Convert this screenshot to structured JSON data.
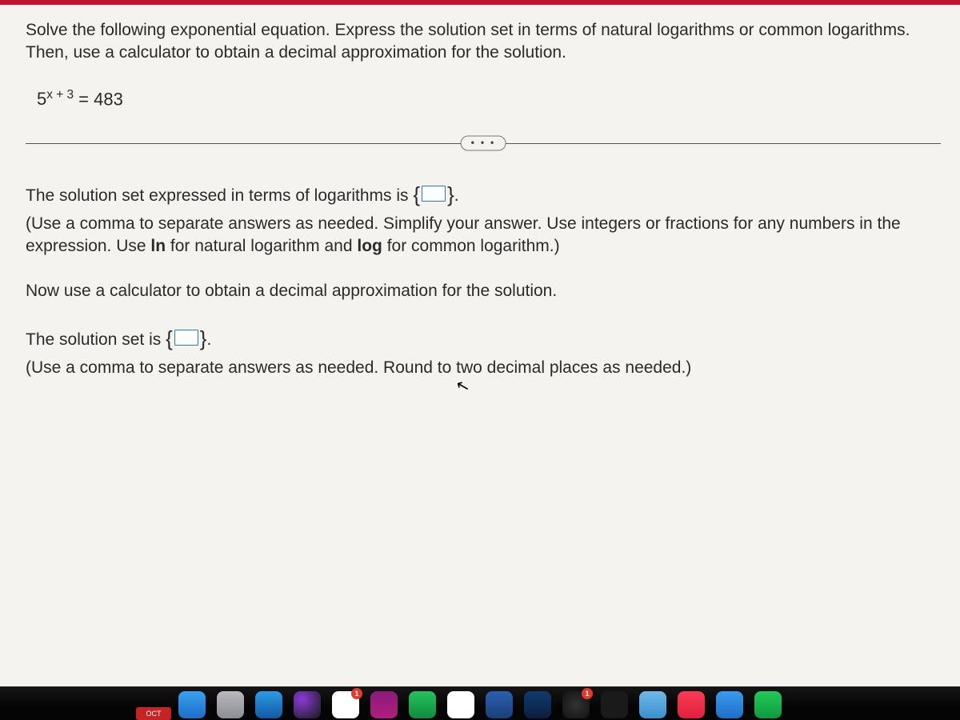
{
  "problem": {
    "instructions": "Solve the following exponential equation. Express the solution set in terms of natural logarithms or common logarithms. Then, use a calculator to obtain a decimal approximation for the solution.",
    "equation_base": "5",
    "equation_exponent": "x + 3",
    "equation_rhs": " = 483"
  },
  "divider_dots": "• • •",
  "answer": {
    "line1_pre": "The solution set expressed in terms of logarithms is ",
    "line1_post": ".",
    "hint1_a": "(Use a comma to separate answers as needed. Simplify your answer. Use integers or fractions for any numbers in the expression. Use ",
    "hint1_ln": "ln",
    "hint1_b": " for natural logarithm and ",
    "hint1_log": "log",
    "hint1_c": " for common logarithm.)",
    "prompt2": "Now use a calculator to obtain a decimal approximation for the solution.",
    "line2_pre": "The solution set is ",
    "line2_post": ".",
    "hint2": "(Use a comma to separate answers as needed. Round to two decimal places as needed.)"
  },
  "brace_open": "{",
  "brace_close": "}",
  "cursor_glyph": "↖",
  "dock": {
    "oct_label": "OCT",
    "icons": [
      {
        "name": "finder-icon",
        "bg": "linear-gradient(#3aa0ef,#1b6fc7)"
      },
      {
        "name": "launchpad-icon",
        "bg": "linear-gradient(#b9b9bf,#8d8d95)"
      },
      {
        "name": "safari-icon",
        "bg": "linear-gradient(#2e9be8,#0f5aa3)"
      },
      {
        "name": "siri-icon",
        "bg": "radial-gradient(circle at 30% 30%,#8a3bd6,#1a1a1a)"
      },
      {
        "name": "calendar-icon",
        "bg": "#ffffff",
        "badge": "1"
      },
      {
        "name": "onenote-icon",
        "bg": "linear-gradient(#8a1b7a,#b01d7f)"
      },
      {
        "name": "numbers-icon",
        "bg": "linear-gradient(#24c35b,#128a3f)"
      },
      {
        "name": "photos-icon",
        "bg": "#ffffff"
      },
      {
        "name": "word-icon",
        "bg": "linear-gradient(#2b5fb0,#1a3f7a)"
      },
      {
        "name": "xcode-icon",
        "bg": "linear-gradient(#103a6e,#0a1f3e)"
      },
      {
        "name": "activity-icon",
        "bg": "radial-gradient(circle,#333,#111)",
        "badge": "1"
      },
      {
        "name": "terminal-icon",
        "bg": "#1a1a1a"
      },
      {
        "name": "folder-icon",
        "bg": "linear-gradient(#6fb9e6,#3a8fcf)"
      },
      {
        "name": "music-icon",
        "bg": "linear-gradient(#fa3c55,#e01f3d)"
      },
      {
        "name": "messages-icon",
        "bg": "linear-gradient(#3a9bef,#1d6fc7)"
      },
      {
        "name": "facetime-icon",
        "bg": "linear-gradient(#25c85b,#0f9a3e)"
      }
    ]
  }
}
